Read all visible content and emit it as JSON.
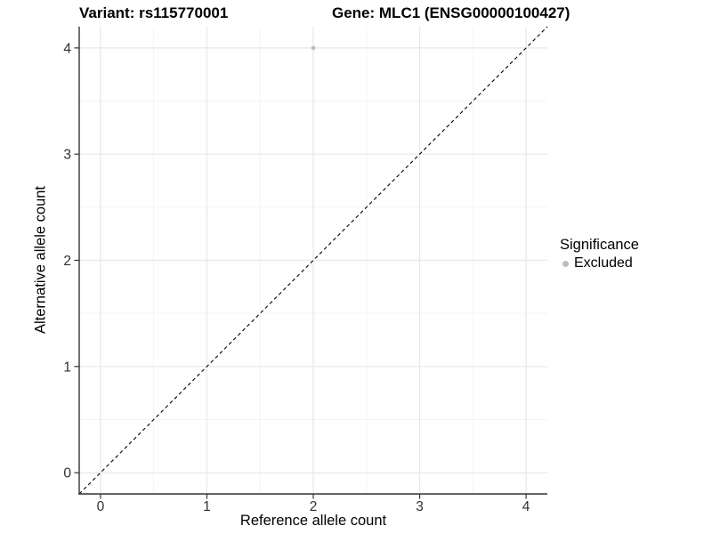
{
  "header": {
    "title_variant": "Variant: rs115770001",
    "title_gene": "Gene: MLC1 (ENSG00000100427)"
  },
  "legend": {
    "title": "Significance",
    "items": [
      {
        "label": "Excluded",
        "marker": "circle",
        "color": "#bdbdbd"
      }
    ]
  },
  "chart_data": {
    "type": "scatter",
    "title_left": "Variant: rs115770001",
    "title_right": "Gene: MLC1 (ENSG00000100427)",
    "xlabel": "Reference allele count",
    "ylabel": "Alternative allele count",
    "xlim": [
      -0.2,
      4.2
    ],
    "ylim": [
      -0.2,
      4.2
    ],
    "x_ticks": [
      0,
      1,
      2,
      3,
      4
    ],
    "y_ticks": [
      0,
      1,
      2,
      3,
      4
    ],
    "minor_gridlines": [
      0.5,
      1.5,
      2.5,
      3.5
    ],
    "points": [
      {
        "x": 2,
        "y": 4,
        "series": "Excluded",
        "color": "#bdbdbd"
      }
    ],
    "reference_line": {
      "kind": "identity y=x",
      "from": [
        -0.2,
        -0.2
      ],
      "to": [
        4.2,
        4.2
      ],
      "style": "dashed",
      "color": "#000000"
    },
    "grid": "major+minor",
    "legend_position": "right",
    "style": {
      "background": "#ffffff",
      "grid_major_color": "#e7e7e7",
      "grid_minor_color": "#f2f2f2",
      "axis_line_color": "#333333",
      "tick_color": "#333333",
      "tick_label_color": "#303030",
      "point_color": "#bdbdbd"
    }
  }
}
